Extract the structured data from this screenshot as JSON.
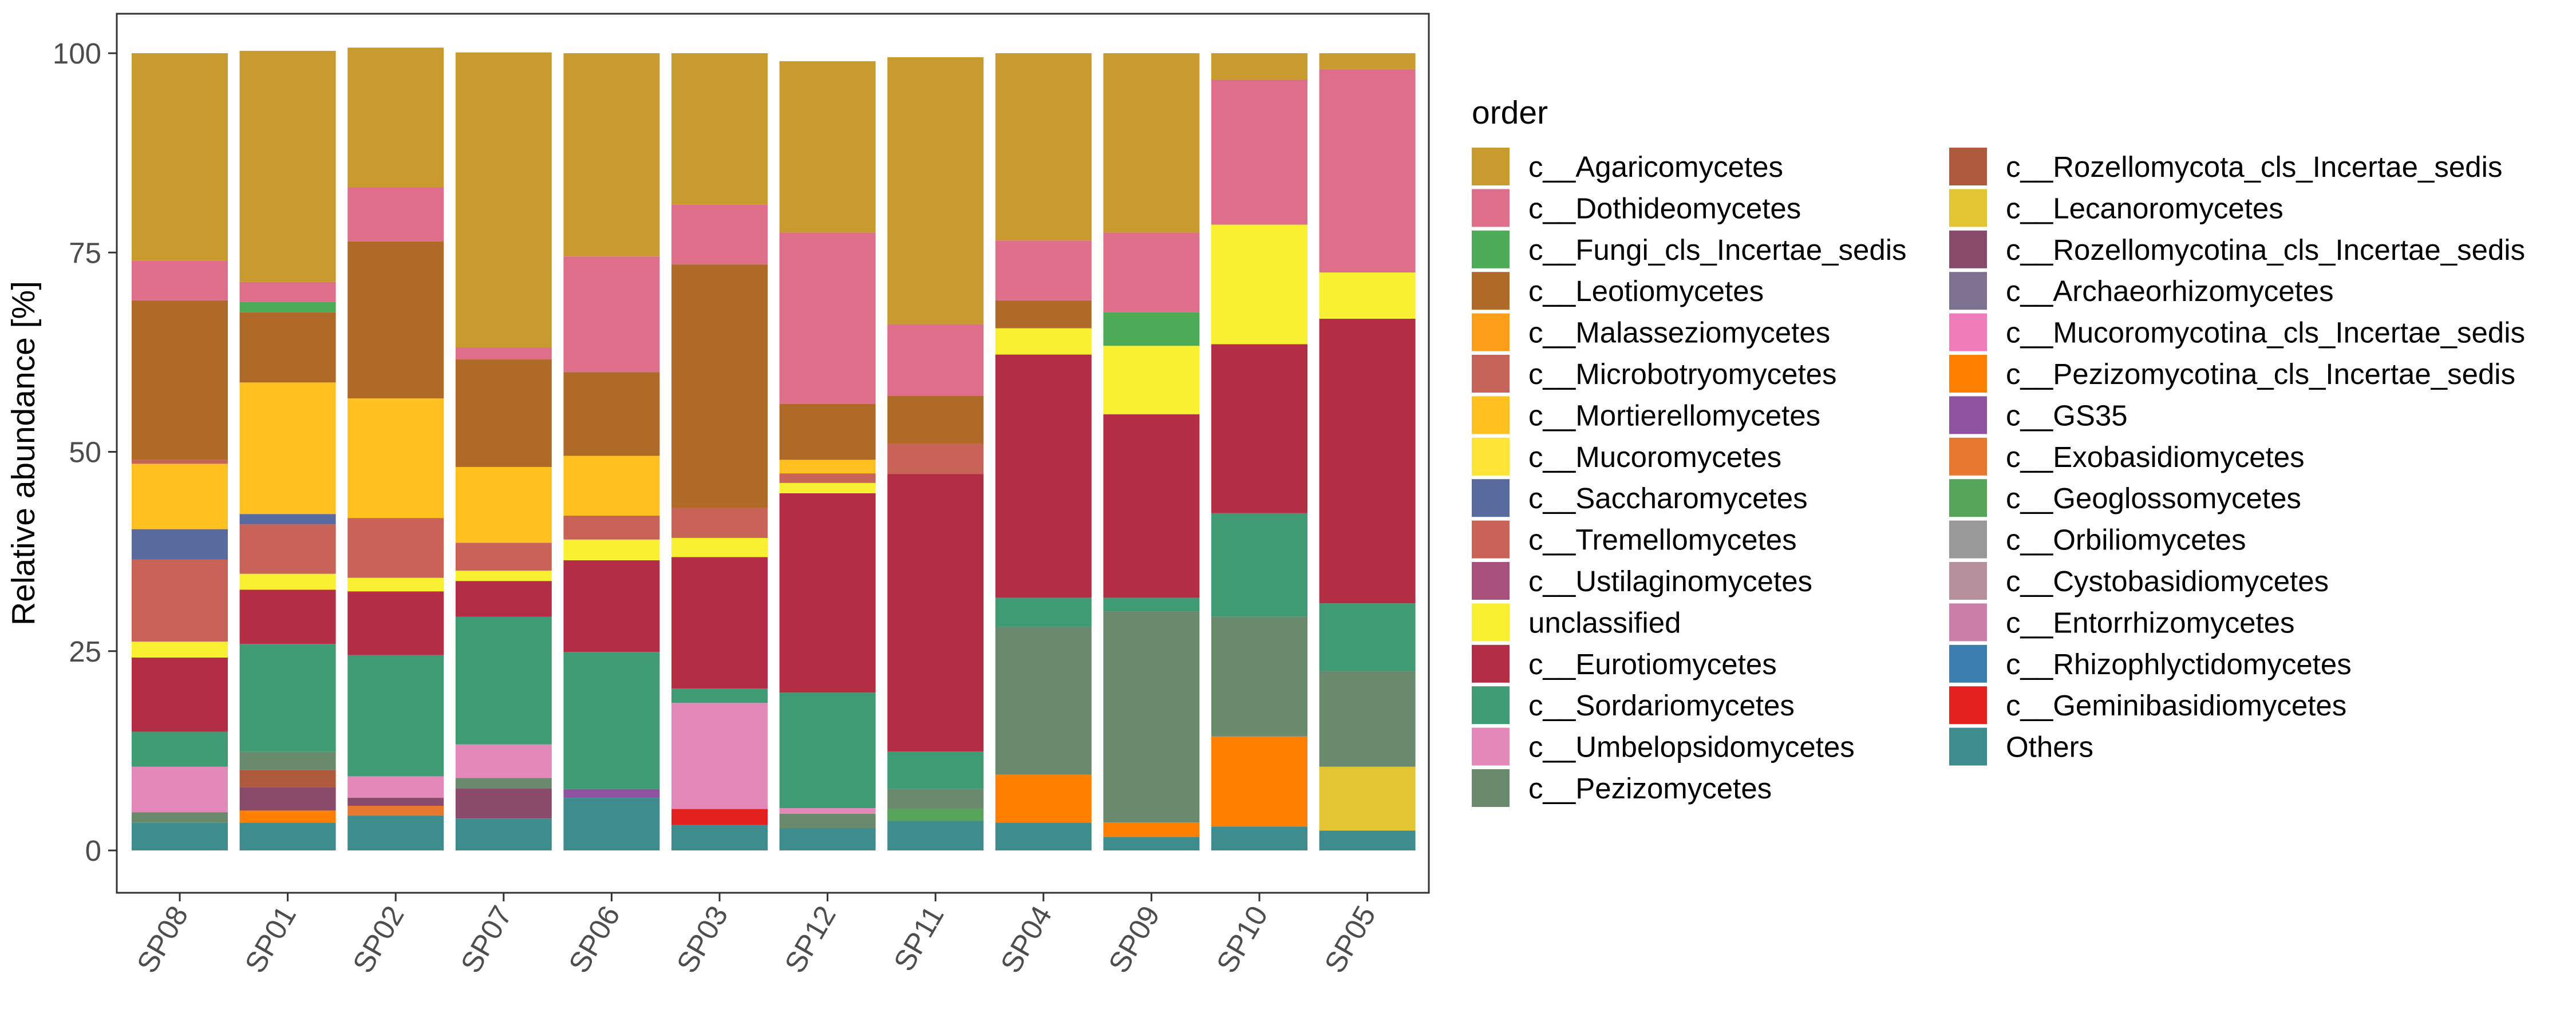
{
  "chart_data": {
    "type": "bar",
    "stacked": true,
    "ylabel": "Relative abundance [%]",
    "xlabel": "",
    "ylim": [
      0,
      100
    ],
    "y_ticks": [
      0,
      25,
      50,
      75,
      100
    ],
    "grid": false,
    "legend_title": "order",
    "legend_position": "right",
    "categories": [
      "SP08",
      "SP01",
      "SP02",
      "SP07",
      "SP06",
      "SP03",
      "SP12",
      "SP11",
      "SP04",
      "SP09",
      "SP10",
      "SP05"
    ],
    "stack_order_bottom_to_top": [
      "Others",
      "c__Geminibasidiomycetes",
      "c__Rhizophlyctidomycetes",
      "c__Entorrhizomycetes",
      "c__Cystobasidiomycetes",
      "c__Orbiliomycetes",
      "c__Geoglossomycetes",
      "c__Exobasidiomycetes",
      "c__GS35",
      "c__Pezizomycotina_cls_Incertae_sedis",
      "c__Mucoromycotina_cls_Incertae_sedis",
      "c__Archaeorhizomycetes",
      "c__Rozellomycotina_cls_Incertae_sedis",
      "c__Lecanoromycetes",
      "c__Rozellomycota_cls_Incertae_sedis",
      "c__Pezizomycetes",
      "c__Umbelopsidomycetes",
      "c__Sordariomycetes",
      "c__Eurotiomycetes",
      "unclassified",
      "c__Ustilaginomycetes",
      "c__Tremellomycetes",
      "c__Saccharomycetes",
      "c__Mucoromycetes",
      "c__Mortierellomycetes",
      "c__Microbotryomycetes",
      "c__Malasseziomycetes",
      "c__Leotiomycetes",
      "c__Fungi_cls_Incertae_sedis",
      "c__Dothideomycetes",
      "c__Agaricomycetes"
    ],
    "series": [
      {
        "name": "c__Agaricomycetes",
        "color": "#C99A2E",
        "values": [
          26,
          29,
          17.5,
          37,
          25.5,
          19,
          21.5,
          33.5,
          23.5,
          22.5,
          3.3,
          2
        ]
      },
      {
        "name": "c__Dothideomycetes",
        "color": "#DE6E8A",
        "values": [
          5,
          2.5,
          6.8,
          1.5,
          14.5,
          7.5,
          21.5,
          9,
          7.5,
          10,
          18.2,
          25.5
        ]
      },
      {
        "name": "c__Fungi_cls_Incertae_sedis",
        "color": "#4DAA57",
        "values": [
          0,
          1.3,
          0,
          0,
          0,
          0,
          0,
          0,
          0,
          4.2,
          0,
          0
        ]
      },
      {
        "name": "c__Leotiomycetes",
        "color": "#B06A28",
        "values": [
          20,
          8.8,
          19.7,
          13.5,
          10.5,
          30.5,
          7,
          6,
          3.5,
          0,
          0,
          0
        ]
      },
      {
        "name": "c__Malasseziomycetes",
        "color": "#FF9E1B",
        "values": [
          0,
          0,
          0,
          0,
          0,
          0,
          0,
          0,
          0,
          0,
          0,
          0
        ]
      },
      {
        "name": "c__Microbotryomycetes",
        "color": "#C6645A",
        "values": [
          0.5,
          0,
          0,
          0,
          0,
          0,
          0,
          0,
          0,
          0,
          0,
          0
        ]
      },
      {
        "name": "c__Mortierellomycetes",
        "color": "#FFC020",
        "values": [
          8.2,
          16.5,
          15,
          9.5,
          7.5,
          0,
          1.7,
          0,
          0,
          0,
          0,
          0
        ]
      },
      {
        "name": "c__Mucoromycetes",
        "color": "#FFE336",
        "values": [
          0,
          0,
          0,
          0,
          0,
          0,
          0,
          0,
          0,
          0,
          0,
          0
        ]
      },
      {
        "name": "c__Saccharomycetes",
        "color": "#596B9E",
        "values": [
          3.8,
          1.3,
          0,
          0,
          0,
          0,
          0,
          0,
          0,
          0,
          0,
          0
        ]
      },
      {
        "name": "c__Tremellomycetes",
        "color": "#C96257",
        "values": [
          10.3,
          6.2,
          7.5,
          3.5,
          3,
          3.8,
          1.2,
          3.8,
          0,
          0,
          0,
          0
        ]
      },
      {
        "name": "c__Ustilaginomycetes",
        "color": "#A8507C",
        "values": [
          0,
          0,
          0,
          0,
          0,
          0,
          0,
          0,
          0,
          0,
          0,
          0
        ]
      },
      {
        "name": "unclassified",
        "color": "#F8F030",
        "values": [
          2,
          2,
          1.7,
          1.3,
          2.6,
          2.4,
          1.3,
          0,
          3.3,
          8.6,
          15,
          5.8
        ]
      },
      {
        "name": "c__Eurotiomycetes",
        "color": "#B32E45",
        "values": [
          9.3,
          6.8,
          8,
          4.5,
          11.5,
          16.5,
          25,
          34.8,
          30.5,
          23,
          21.2,
          35.7
        ]
      },
      {
        "name": "c__Sordariomycetes",
        "color": "#3F9B74",
        "values": [
          4.4,
          13.5,
          15.2,
          16,
          17.2,
          1.8,
          14.5,
          4.7,
          3.7,
          1.7,
          13,
          8.5
        ]
      },
      {
        "name": "c__Umbelopsidomycetes",
        "color": "#E488BA",
        "values": [
          5.7,
          0,
          2.7,
          4.2,
          0,
          13.3,
          0.7,
          0,
          0,
          0,
          0,
          0
        ]
      },
      {
        "name": "c__Pezizomycetes",
        "color": "#6A8A6E",
        "values": [
          1.3,
          2.3,
          0,
          1.3,
          0,
          0,
          1.8,
          2.5,
          18.5,
          26.5,
          15,
          12
        ]
      },
      {
        "name": "c__Rozellomycota_cls_Incertae_sedis",
        "color": "#AF5A3C",
        "values": [
          0,
          2.2,
          0,
          0,
          0,
          0,
          0,
          0,
          0,
          0,
          0,
          0
        ]
      },
      {
        "name": "c__Lecanoromycetes",
        "color": "#E3C432",
        "values": [
          0,
          0,
          0,
          0,
          0,
          0,
          0,
          0,
          0,
          0,
          0,
          8
        ]
      },
      {
        "name": "c__Rozellomycotina_cls_Incertae_sedis",
        "color": "#8A4A6A",
        "values": [
          0,
          2.9,
          1,
          3.8,
          0,
          0,
          0,
          0,
          0,
          0,
          0,
          0
        ]
      },
      {
        "name": "c__Archaeorhizomycetes",
        "color": "#7E7090",
        "values": [
          0,
          0,
          0,
          0,
          0,
          0,
          0,
          0,
          0,
          0,
          0,
          0
        ]
      },
      {
        "name": "c__Mucoromycotina_cls_Incertae_sedis",
        "color": "#F07DBA",
        "values": [
          0,
          0,
          0,
          0,
          0,
          0,
          0,
          0,
          0,
          0,
          0,
          0
        ]
      },
      {
        "name": "c__Pezizomycotina_cls_Incertae_sedis",
        "color": "#FF8000",
        "values": [
          0,
          1.5,
          0,
          0,
          0,
          0,
          0,
          0,
          6,
          1.8,
          11.3,
          0
        ]
      },
      {
        "name": "c__GS35",
        "color": "#9053A1",
        "values": [
          0,
          0,
          0,
          0,
          1.1,
          0,
          0,
          0,
          0,
          0,
          0,
          0
        ]
      },
      {
        "name": "c__Exobasidiomycetes",
        "color": "#E8772E",
        "values": [
          0,
          0,
          1.2,
          0,
          0,
          0,
          0,
          0,
          0,
          0,
          0,
          0
        ]
      },
      {
        "name": "c__Geoglossomycetes",
        "color": "#56A45A",
        "values": [
          0,
          0,
          0,
          0,
          0,
          0,
          0,
          1.5,
          0,
          0,
          0,
          0
        ]
      },
      {
        "name": "c__Orbiliomycetes",
        "color": "#999999",
        "values": [
          0,
          0,
          0,
          0,
          0,
          0,
          0,
          0,
          0,
          0,
          0,
          0
        ]
      },
      {
        "name": "c__Cystobasidiomycetes",
        "color": "#B7909D",
        "values": [
          0,
          0,
          0,
          0,
          0,
          0,
          0,
          0,
          0,
          0,
          0,
          0
        ]
      },
      {
        "name": "c__Entorrhizomycetes",
        "color": "#C97FA8",
        "values": [
          0,
          0,
          0,
          0,
          0,
          0,
          0,
          0,
          0,
          0,
          0,
          0
        ]
      },
      {
        "name": "c__Rhizophlyctidomycetes",
        "color": "#3C7DB0",
        "values": [
          0,
          0,
          0,
          0,
          0,
          0,
          0,
          0,
          0,
          0,
          0,
          0
        ]
      },
      {
        "name": "c__Geminibasidiomycetes",
        "color": "#E3211F",
        "values": [
          0,
          0,
          0,
          0,
          0,
          2,
          0,
          0,
          0,
          0,
          0,
          0
        ]
      },
      {
        "name": "Others",
        "color": "#3F8C8E",
        "values": [
          3.5,
          3.5,
          4.4,
          4,
          6.6,
          3.2,
          2.8,
          3.7,
          3.5,
          1.7,
          3,
          2.5
        ]
      }
    ],
    "legend_entries": [
      "c__Agaricomycetes",
      "c__Dothideomycetes",
      "c__Fungi_cls_Incertae_sedis",
      "c__Leotiomycetes",
      "c__Malasseziomycetes",
      "c__Microbotryomycetes",
      "c__Mortierellomycetes",
      "c__Mucoromycetes",
      "c__Saccharomycetes",
      "c__Tremellomycetes",
      "c__Ustilaginomycetes",
      "unclassified",
      "c__Eurotiomycetes",
      "c__Sordariomycetes",
      "c__Umbelopsidomycetes",
      "c__Pezizomycetes",
      "c__Rozellomycota_cls_Incertae_sedis",
      "c__Lecanoromycetes",
      "c__Rozellomycotina_cls_Incertae_sedis",
      "c__Archaeorhizomycetes",
      "c__Mucoromycotina_cls_Incertae_sedis",
      "c__Pezizomycotina_cls_Incertae_sedis",
      "c__GS35",
      "c__Exobasidiomycetes",
      "c__Geoglossomycetes",
      "c__Orbiliomycetes",
      "c__Cystobasidiomycetes",
      "c__Entorrhizomycetes",
      "c__Rhizophlyctidomycetes",
      "c__Geminibasidiomycetes",
      "Others"
    ]
  }
}
